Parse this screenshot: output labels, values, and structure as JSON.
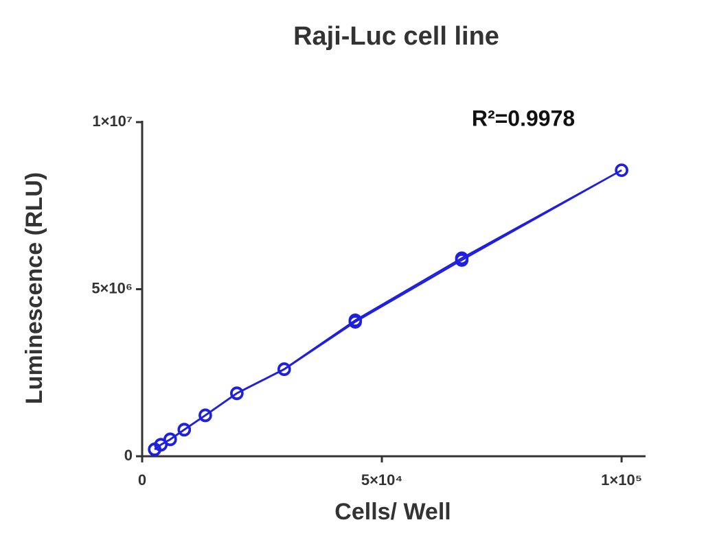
{
  "chart_data": {
    "type": "line",
    "title": "Raji-Luc cell line",
    "annotation": "R²=0.9978",
    "x_label": "Cells/ Well",
    "y_label": "Luminescence (RLU)",
    "x": [
      100000,
      66667,
      44444,
      29630,
      19753,
      13169,
      8779,
      5853,
      3902,
      2601
    ],
    "series": [
      {
        "color": "#1f1fe0",
        "values": [
          8560000,
          5930000,
          4070000,
          2610000,
          1890000,
          1230000,
          800000,
          510000,
          350000,
          210000
        ]
      },
      {
        "color": "#1f1fe0",
        "values": [
          8560000,
          5870000,
          4020000,
          2600000,
          1880000,
          1220000,
          790000,
          500000,
          340000,
          200000
        ]
      }
    ],
    "xlim": [
      0,
      105000
    ],
    "xticks": [
      0,
      {
        "value": 50000,
        "label": "5×10⁴"
      },
      {
        "value": 100000,
        "label": "1×10⁵"
      }
    ],
    "ylim": [
      0,
      10000000
    ],
    "yticks": [
      0,
      {
        "value": 5000000,
        "label": "5×10⁶"
      },
      {
        "value": 10000000,
        "label": "1×10⁷"
      }
    ],
    "grid": false
  }
}
